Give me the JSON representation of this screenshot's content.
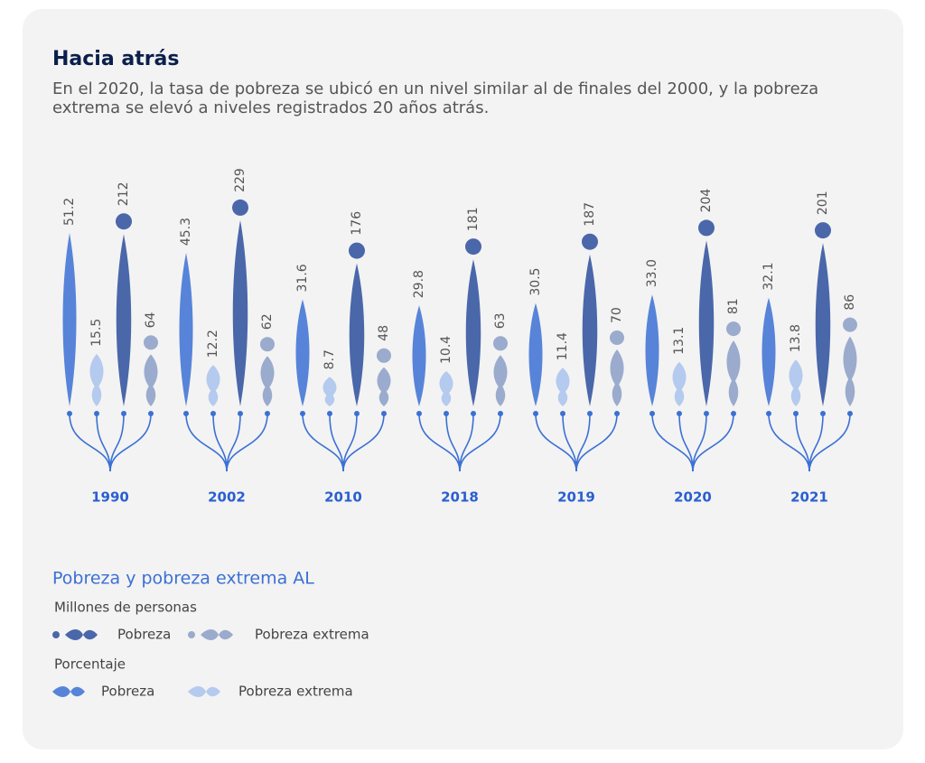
{
  "chart_data": {
    "type": "spindle",
    "title": "Hacia atrás",
    "subtitle": "En el 2020, la tasa de pobreza se ubicó en un nivel similar al de finales del 2000, y la pobreza extrema se elevó a niveles registrados 20 años atrás.",
    "categories": [
      "1990",
      "2002",
      "2010",
      "2018",
      "2019",
      "2020",
      "2021"
    ],
    "legend_title": "Pobreza y pobreza extrema AL",
    "groups": [
      {
        "name": "Millones de personas",
        "series": [
          {
            "name": "Pobreza",
            "color": "#2c4d9c",
            "values": [
              212,
              229,
              176,
              181,
              187,
              204,
              201
            ]
          },
          {
            "name": "Pobreza extrema",
            "color": "#8a9ec6",
            "values": [
              64,
              62,
              48,
              63,
              70,
              81,
              86
            ]
          }
        ]
      },
      {
        "name": "Porcentaje",
        "series": [
          {
            "name": "Pobreza",
            "color": "#3b70d4",
            "values": [
              51.2,
              45.3,
              31.6,
              29.8,
              30.5,
              33.0,
              32.1
            ],
            "value_labels": [
              "51.2",
              "45.3",
              "31.6",
              "29.8",
              "30.5",
              "33.0",
              "32.1"
            ]
          },
          {
            "name": "Pobreza extrema",
            "color": "#a8c2ec",
            "values": [
              15.5,
              12.2,
              8.7,
              10.4,
              11.4,
              13.1,
              13.8
            ]
          }
        ]
      }
    ]
  }
}
